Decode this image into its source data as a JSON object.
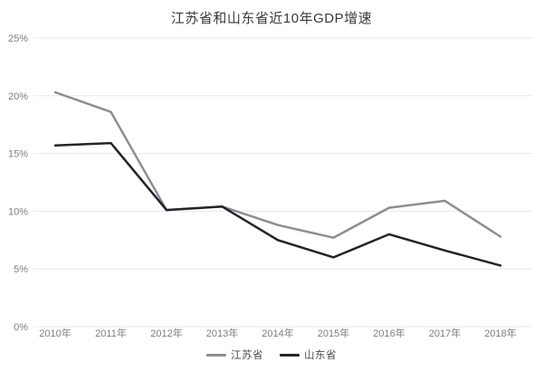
{
  "chart_data": {
    "type": "line",
    "title": "江苏省和山东省近10年GDP增速",
    "categories": [
      "2010年",
      "2011年",
      "2012年",
      "2013年",
      "2014年",
      "2015年",
      "2016年",
      "2017年",
      "2018年"
    ],
    "series": [
      {
        "name": "江苏省",
        "color": "#8d8d95",
        "values": [
          20.3,
          18.6,
          10.1,
          10.4,
          8.8,
          7.7,
          10.3,
          10.9,
          7.8
        ]
      },
      {
        "name": "山东省",
        "color": "#23232e",
        "values": [
          15.7,
          15.9,
          10.1,
          10.4,
          7.5,
          6.0,
          8.0,
          6.6,
          5.3
        ]
      }
    ],
    "xlabel": "",
    "ylabel": "",
    "y_ticks": [
      "0%",
      "5%",
      "10%",
      "15%",
      "20%",
      "25%"
    ],
    "y_tick_values": [
      0,
      5,
      10,
      15,
      20,
      25
    ],
    "ylim": [
      0,
      25
    ],
    "grid": true,
    "legend_position": "bottom",
    "colors": {
      "background": "#ffffff",
      "gridline": "#e8e8e8",
      "tick_label": "#7d7d7d",
      "title": "#3a3a3a"
    }
  }
}
